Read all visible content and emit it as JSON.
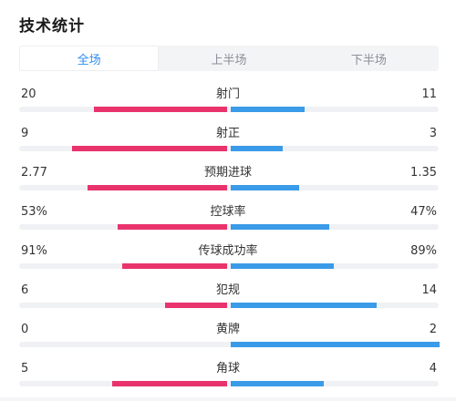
{
  "title": "技术统计",
  "tabs": [
    "全场",
    "上半场",
    "下半场"
  ],
  "active_tab": 0,
  "colors": {
    "home": "#e8336d",
    "away": "#3a9be8",
    "active_tab": "#2d8cf0"
  },
  "stats": [
    {
      "label": "射门",
      "left": "20",
      "right": "11",
      "left_share": 0.645,
      "right_share": 0.355
    },
    {
      "label": "射正",
      "left": "9",
      "right": "3",
      "left_share": 0.75,
      "right_share": 0.25
    },
    {
      "label": "预期进球",
      "left": "2.77",
      "right": "1.35",
      "left_share": 0.672,
      "right_share": 0.328
    },
    {
      "label": "控球率",
      "left": "53%",
      "right": "47%",
      "left_share": 0.53,
      "right_share": 0.47
    },
    {
      "label": "传球成功率",
      "left": "91%",
      "right": "89%",
      "left_share": 0.506,
      "right_share": 0.494
    },
    {
      "label": "犯规",
      "left": "6",
      "right": "14",
      "left_share": 0.3,
      "right_share": 0.7
    },
    {
      "label": "黄牌",
      "left": "0",
      "right": "2",
      "left_share": 0.0,
      "right_share": 1.0
    },
    {
      "label": "角球",
      "left": "5",
      "right": "4",
      "left_share": 0.556,
      "right_share": 0.444
    }
  ]
}
